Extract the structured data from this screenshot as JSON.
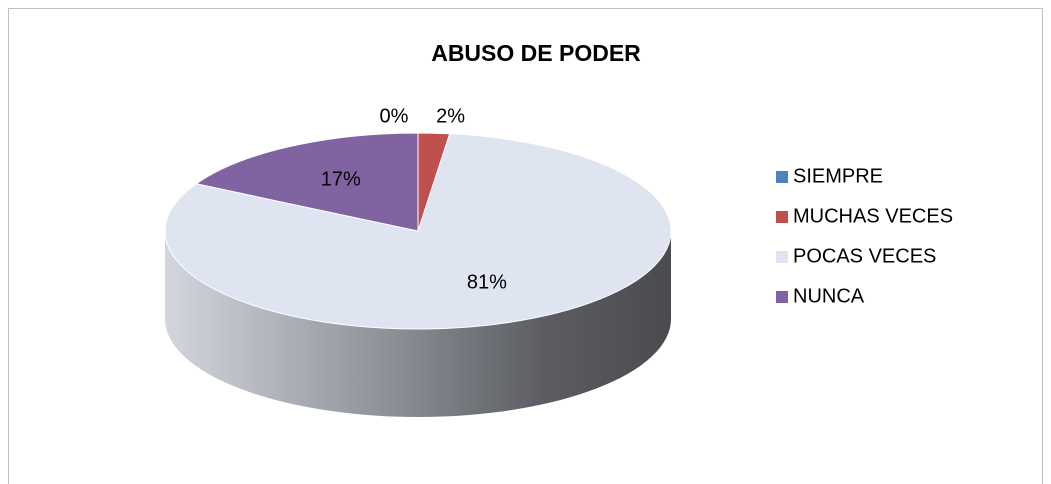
{
  "chart_data": {
    "type": "pie3d",
    "title": "ABUSO DE PODER",
    "categories": [
      "SIEMPRE",
      "MUCHAS VECES",
      "POCAS VECES",
      "NUNCA"
    ],
    "values": [
      0,
      2,
      81,
      17
    ],
    "value_labels": [
      "0%",
      "2%",
      "81%",
      "17%"
    ],
    "colors": [
      "#4f81bd",
      "#c0504d",
      "#dfe4f1",
      "#8064a2"
    ],
    "legend": "right"
  }
}
